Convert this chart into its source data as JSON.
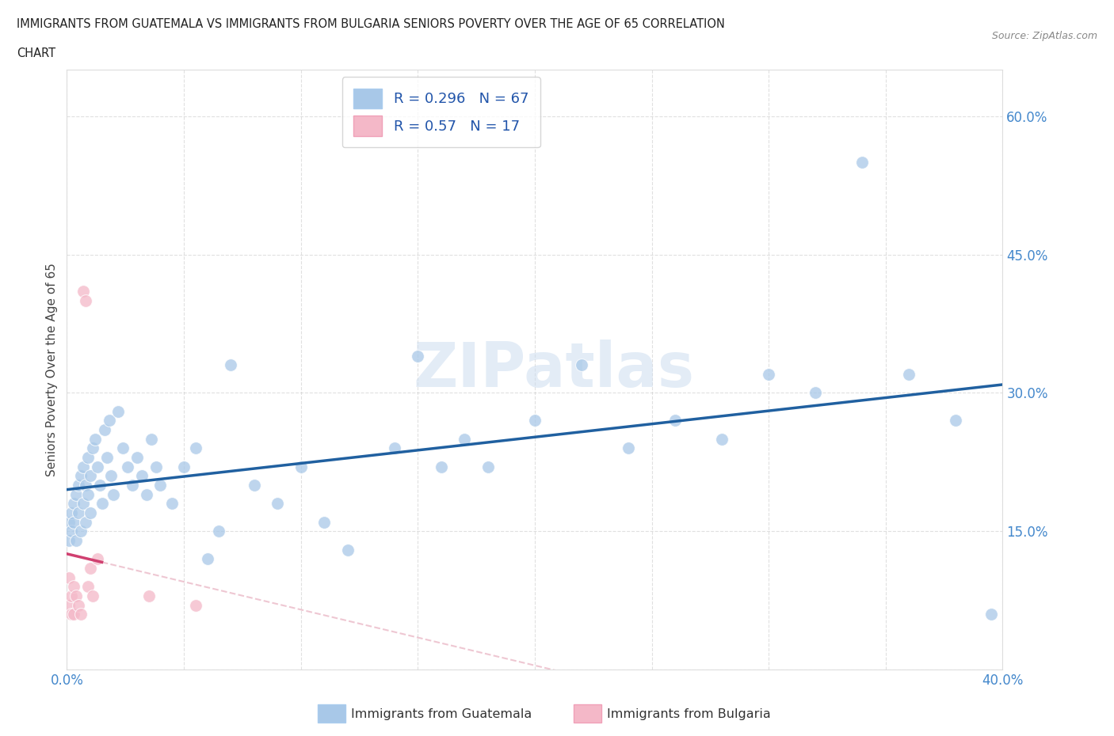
{
  "title_line1": "IMMIGRANTS FROM GUATEMALA VS IMMIGRANTS FROM BULGARIA SENIORS POVERTY OVER THE AGE OF 65 CORRELATION",
  "title_line2": "CHART",
  "source": "Source: ZipAtlas.com",
  "ylabel": "Seniors Poverty Over the Age of 65",
  "xlabel_guatemala": "Immigrants from Guatemala",
  "xlabel_bulgaria": "Immigrants from Bulgaria",
  "R_guatemala": 0.296,
  "N_guatemala": 67,
  "R_bulgaria": 0.57,
  "N_bulgaria": 17,
  "color_guatemala": "#a8c8e8",
  "color_bulgaria": "#f4b8c8",
  "color_line_guatemala": "#2060a0",
  "color_line_bulgaria": "#d04070",
  "watermark_color": "#ddeeff",
  "xlim": [
    0,
    0.4
  ],
  "ylim": [
    0,
    0.65
  ],
  "xticks": [
    0.0,
    0.05,
    0.1,
    0.15,
    0.2,
    0.25,
    0.3,
    0.35,
    0.4
  ],
  "yticks": [
    0.0,
    0.15,
    0.3,
    0.45,
    0.6
  ],
  "guatemala_x": [
    0.001,
    0.001,
    0.002,
    0.002,
    0.003,
    0.003,
    0.004,
    0.004,
    0.005,
    0.005,
    0.006,
    0.006,
    0.007,
    0.007,
    0.008,
    0.008,
    0.009,
    0.009,
    0.01,
    0.01,
    0.011,
    0.012,
    0.013,
    0.014,
    0.015,
    0.016,
    0.017,
    0.018,
    0.019,
    0.02,
    0.022,
    0.024,
    0.026,
    0.028,
    0.03,
    0.032,
    0.034,
    0.036,
    0.038,
    0.04,
    0.045,
    0.05,
    0.055,
    0.06,
    0.065,
    0.07,
    0.08,
    0.09,
    0.1,
    0.11,
    0.12,
    0.14,
    0.15,
    0.16,
    0.17,
    0.18,
    0.2,
    0.22,
    0.24,
    0.26,
    0.28,
    0.3,
    0.32,
    0.34,
    0.36,
    0.38,
    0.395
  ],
  "guatemala_y": [
    0.16,
    0.14,
    0.17,
    0.15,
    0.18,
    0.16,
    0.19,
    0.14,
    0.2,
    0.17,
    0.21,
    0.15,
    0.22,
    0.18,
    0.2,
    0.16,
    0.23,
    0.19,
    0.21,
    0.17,
    0.24,
    0.25,
    0.22,
    0.2,
    0.18,
    0.26,
    0.23,
    0.27,
    0.21,
    0.19,
    0.28,
    0.24,
    0.22,
    0.2,
    0.23,
    0.21,
    0.19,
    0.25,
    0.22,
    0.2,
    0.18,
    0.22,
    0.24,
    0.12,
    0.15,
    0.33,
    0.2,
    0.18,
    0.22,
    0.16,
    0.13,
    0.24,
    0.34,
    0.22,
    0.25,
    0.22,
    0.27,
    0.33,
    0.24,
    0.27,
    0.25,
    0.32,
    0.3,
    0.55,
    0.32,
    0.27,
    0.06
  ],
  "bulgaria_x": [
    0.001,
    0.001,
    0.002,
    0.002,
    0.003,
    0.003,
    0.004,
    0.005,
    0.006,
    0.007,
    0.008,
    0.009,
    0.01,
    0.011,
    0.013,
    0.035,
    0.055
  ],
  "bulgaria_y": [
    0.1,
    0.07,
    0.08,
    0.06,
    0.06,
    0.09,
    0.08,
    0.07,
    0.06,
    0.41,
    0.4,
    0.09,
    0.11,
    0.08,
    0.12,
    0.08,
    0.07
  ],
  "background_color": "#ffffff",
  "grid_color": "#cccccc"
}
